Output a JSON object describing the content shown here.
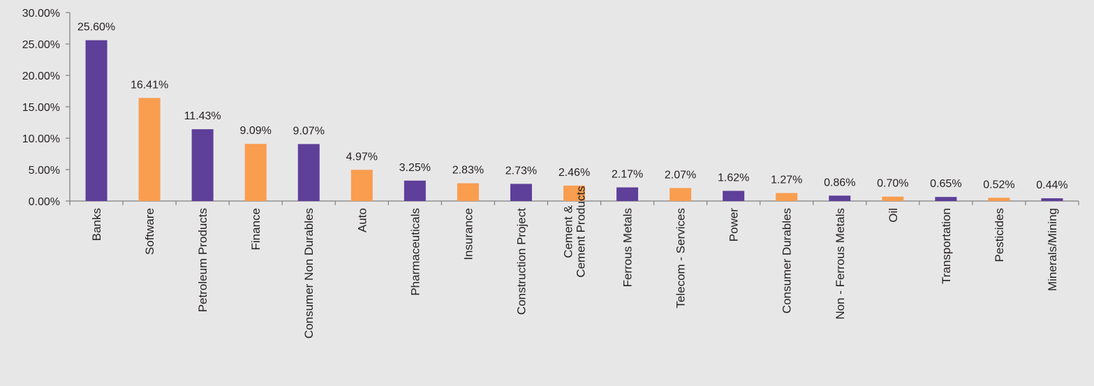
{
  "chart_data": {
    "type": "bar",
    "categories": [
      "Banks",
      "Software",
      "Petroleum Products",
      "Finance",
      "Consumer Non Durables",
      "Auto",
      "Pharmaceuticals",
      "Insurance",
      "Construction Project",
      "Cement & Cement Products",
      "Ferrous Metals",
      "Telecom - Services",
      "Power",
      "Consumer Durables",
      "Non - Ferrous Metals",
      "Oil",
      "Transportation",
      "Pesticides",
      "Minerals/Mining"
    ],
    "values": [
      25.6,
      16.41,
      11.43,
      9.09,
      9.07,
      4.97,
      3.25,
      2.83,
      2.73,
      2.46,
      2.17,
      2.07,
      1.62,
      1.27,
      0.86,
      0.7,
      0.65,
      0.52,
      0.44
    ],
    "data_labels": [
      "25.60%",
      "16.41%",
      "11.43%",
      "9.09%",
      "9.07%",
      "4.97%",
      "3.25%",
      "2.83%",
      "2.73%",
      "2.46%",
      "2.17%",
      "2.07%",
      "1.62%",
      "1.27%",
      "0.86%",
      "0.70%",
      "0.65%",
      "0.52%",
      "0.44%"
    ],
    "y_ticks": [
      0,
      5,
      10,
      15,
      20,
      25,
      30
    ],
    "y_tick_labels": [
      "0.00%",
      "5.00%",
      "10.00%",
      "15.00%",
      "20.00%",
      "25.00%",
      "30.00%"
    ],
    "ylim": [
      0,
      30
    ],
    "title": "",
    "xlabel": "",
    "ylabel": "",
    "grid": false,
    "legend": "none",
    "bar_colors": [
      "#5e3f99",
      "#f99d4f"
    ],
    "axis_color": "#7f7f7f",
    "text_color": "#231f20",
    "background": "#e8e7e8"
  }
}
